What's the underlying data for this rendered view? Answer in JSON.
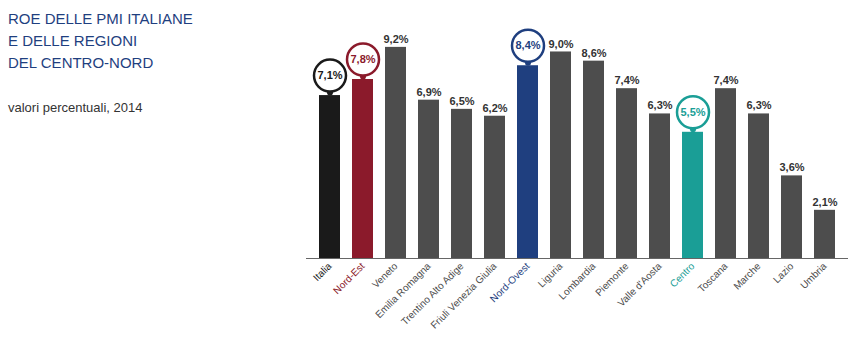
{
  "chart_data": {
    "type": "bar",
    "title": "ROE DELLE PMI ITALIANE\nE DELLE REGIONI\nDEL CENTRO-NORD",
    "subtitle": "valori percentuali, 2014",
    "categories": [
      "Italia",
      "Nord-Est",
      "Veneto",
      "Emilia Romagna",
      "Trentino Alto Adige",
      "Friuli Venezia Giulia",
      "Nord-Ovest",
      "Liguria",
      "Lombardia",
      "Piemonte",
      "Valle d'Aosta",
      "Centro",
      "Toscana",
      "Marche",
      "Lazio",
      "Umbria"
    ],
    "values": [
      7.1,
      7.8,
      9.2,
      6.9,
      6.5,
      6.2,
      8.4,
      9.0,
      8.6,
      7.4,
      6.3,
      5.5,
      7.4,
      6.3,
      3.6,
      2.1
    ],
    "value_labels": [
      "7,1%",
      "7,8%",
      "9,2%",
      "6,9%",
      "6,5%",
      "6,2%",
      "8,4%",
      "9,0%",
      "8,6%",
      "7,4%",
      "6,3%",
      "5,5%",
      "7,4%",
      "6,3%",
      "3,6%",
      "2,1%"
    ],
    "color": "#4d4d4d",
    "colors": [
      "#1a1a1a",
      "#8b1a2b",
      "#4d4d4d",
      "#4d4d4d",
      "#4d4d4d",
      "#4d4d4d",
      "#1f3f7f",
      "#4d4d4d",
      "#4d4d4d",
      "#4d4d4d",
      "#4d4d4d",
      "#1a9e96",
      "#4d4d4d",
      "#4d4d4d",
      "#4d4d4d",
      "#4d4d4d"
    ],
    "ylim": [
      0,
      9.5
    ],
    "data_labels": true,
    "tick_labels": "x",
    "grid": false
  }
}
